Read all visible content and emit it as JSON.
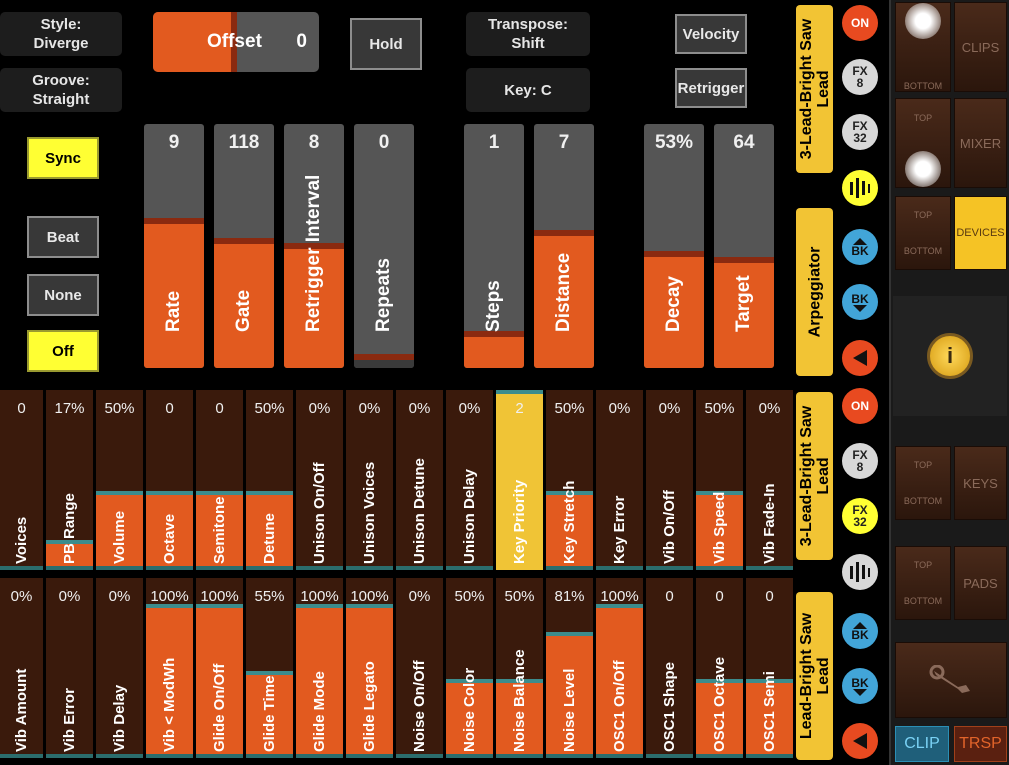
{
  "top": {
    "style": "Style:\nDiverge",
    "groove": "Groove:\nStraight",
    "offset_label": "Offset",
    "offset_value": "0",
    "offset_level": 0.5,
    "hold": "Hold",
    "transpose": "Transpose:\nShift",
    "key": "Key: C",
    "velocity": "Velocity",
    "retrigger": "Retrigger",
    "sync": "Sync",
    "beat": "Beat",
    "none": "None",
    "off": "Off"
  },
  "arp_sliders": [
    {
      "label": "Rate",
      "value": "9",
      "level": 0.7
    },
    {
      "label": "Gate",
      "value": "118",
      "level": 0.6
    },
    {
      "label": "Retrigger Interval",
      "value": "8",
      "level": 0.57
    },
    {
      "label": "Repeats",
      "value": "0",
      "level": 0.0
    },
    {
      "label": "Steps",
      "value": "1",
      "level": 0.12
    },
    {
      "label": "Distance",
      "value": "7",
      "level": 0.64
    },
    {
      "label": "Decay",
      "value": "53%",
      "level": 0.53
    },
    {
      "label": "Target",
      "value": "64",
      "level": 0.5
    }
  ],
  "row1": [
    {
      "label": "Voices",
      "value": "0",
      "level": 0
    },
    {
      "label": "PB Range",
      "value": "17%",
      "level": 0.17
    },
    {
      "label": "Volume",
      "value": "50%",
      "level": 0.5
    },
    {
      "label": "Octave",
      "value": "0",
      "level": 0.5
    },
    {
      "label": "Semitone",
      "value": "0",
      "level": 0.5
    },
    {
      "label": "Detune",
      "value": "50%",
      "level": 0.5
    },
    {
      "label": "Unison On/Off",
      "value": "0%",
      "level": 0
    },
    {
      "label": "Unison Voices",
      "value": "0%",
      "level": 0
    },
    {
      "label": "Unison Detune",
      "value": "0%",
      "level": 0
    },
    {
      "label": "Unison Delay",
      "value": "0%",
      "level": 0
    },
    {
      "label": "Key Priority",
      "value": "2",
      "level": 1,
      "highlight": true
    },
    {
      "label": "Key Stretch",
      "value": "50%",
      "level": 0.5
    },
    {
      "label": "Key Error",
      "value": "0%",
      "level": 0
    },
    {
      "label": "Vib On/Off",
      "value": "0%",
      "level": 0
    },
    {
      "label": "Vib Speed",
      "value": "50%",
      "level": 0.5
    },
    {
      "label": "Vib Fade-In",
      "value": "0%",
      "level": 0
    }
  ],
  "row2": [
    {
      "label": "Vib Amount",
      "value": "0%",
      "level": 0
    },
    {
      "label": "Vib Error",
      "value": "0%",
      "level": 0
    },
    {
      "label": "Vib Delay",
      "value": "0%",
      "level": 0
    },
    {
      "label": "Vib < ModWh",
      "value": "100%",
      "level": 1
    },
    {
      "label": "Glide On/Off",
      "value": "100%",
      "level": 1
    },
    {
      "label": "Glide Time",
      "value": "55%",
      "level": 0.55
    },
    {
      "label": "Glide Mode",
      "value": "100%",
      "level": 1
    },
    {
      "label": "Glide Legato",
      "value": "100%",
      "level": 1
    },
    {
      "label": "Noise On/Off",
      "value": "0%",
      "level": 0
    },
    {
      "label": "Noise Color",
      "value": "50%",
      "level": 0.5
    },
    {
      "label": "Noise Balance",
      "value": "50%",
      "level": 0.5
    },
    {
      "label": "Noise Level",
      "value": "81%",
      "level": 0.81
    },
    {
      "label": "OSC1 On/Off",
      "value": "100%",
      "level": 1
    },
    {
      "label": "OSC1 Shape",
      "value": "0",
      "level": 0
    },
    {
      "label": "OSC1 Octave",
      "value": "0",
      "level": 0.5
    },
    {
      "label": "OSC1 Semi",
      "value": "0",
      "level": 0.5
    }
  ],
  "tracks": {
    "t1": "3-Lead-Bright Saw\nLead",
    "t2": "Arpeggiator",
    "t3": "3-Lead-Bright Saw\nLead",
    "t4": "Lead-Bright Saw\nLead"
  },
  "side": {
    "on": "ON",
    "fx8": "FX\n8",
    "fx32": "FX\n32",
    "bk": "BK"
  },
  "pads": {
    "top": "TOP",
    "bottom": "BOTTOM",
    "clips": "CLIPS",
    "mixer": "MIXER",
    "devices": "DEVICES",
    "keys": "KEYS",
    "pads": "PADS",
    "clip": "CLIP",
    "trsp": "TRSP",
    "info": "i"
  },
  "colors": {
    "orange": "#e25a1f",
    "yellow": "#f2c434",
    "red": "#e84a20"
  }
}
